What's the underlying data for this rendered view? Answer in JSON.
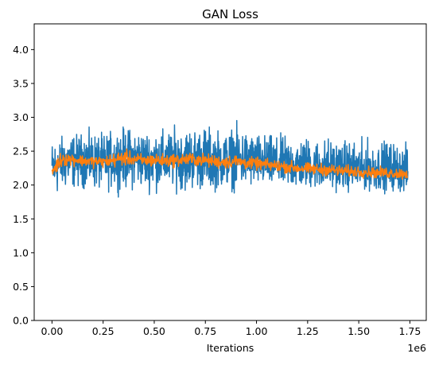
{
  "chart_data": {
    "type": "line",
    "title": "GAN Loss",
    "xlabel": "Iterations",
    "ylabel": "",
    "x_offset_label": "1e6",
    "x_ticks": [
      "0.00",
      "0.25",
      "0.50",
      "0.75",
      "1.00",
      "1.25",
      "1.50",
      "1.75"
    ],
    "y_ticks": [
      "0.0",
      "0.5",
      "1.0",
      "1.5",
      "2.0",
      "2.5",
      "3.0",
      "3.5",
      "4.0"
    ],
    "xlim": [
      -0.087,
      1.83
    ],
    "ylim": [
      0,
      4.38
    ],
    "grid": false,
    "series": [
      {
        "color": "#1f77b4",
        "x": [
          0.0,
          0.05,
          0.1,
          0.15,
          0.2,
          0.25,
          0.3,
          0.35,
          0.4,
          0.45,
          0.5,
          0.55,
          0.6,
          0.65,
          0.7,
          0.75,
          0.8,
          0.85,
          0.9,
          0.95,
          1.0,
          1.05,
          1.1,
          1.15,
          1.2,
          1.25,
          1.3,
          1.35,
          1.4,
          1.45,
          1.5,
          1.55,
          1.6,
          1.65,
          1.7,
          1.74
        ],
        "center": [
          2.25,
          2.35,
          2.38,
          2.38,
          2.37,
          2.35,
          2.38,
          2.4,
          2.4,
          2.38,
          2.38,
          2.37,
          2.38,
          2.4,
          2.39,
          2.38,
          2.36,
          2.37,
          2.38,
          2.37,
          2.35,
          2.33,
          2.32,
          2.3,
          2.28,
          2.3,
          2.27,
          2.26,
          2.25,
          2.24,
          2.22,
          2.22,
          2.2,
          2.2,
          2.18,
          2.17
        ],
        "low": [
          1.6,
          1.75,
          1.8,
          1.82,
          1.78,
          1.75,
          1.8,
          1.78,
          1.78,
          1.8,
          1.75,
          1.78,
          1.8,
          1.72,
          1.78,
          1.75,
          1.78,
          1.8,
          1.78,
          1.8,
          1.8,
          1.82,
          1.8,
          1.83,
          1.8,
          1.82,
          1.8,
          1.8,
          1.82,
          1.8,
          1.8,
          1.82,
          1.8,
          1.82,
          1.8,
          1.8
        ],
        "high": [
          2.8,
          2.85,
          2.88,
          2.9,
          2.92,
          2.88,
          2.95,
          3.0,
          2.98,
          2.95,
          2.98,
          2.95,
          3.0,
          3.0,
          3.02,
          3.05,
          2.98,
          2.95,
          3.05,
          2.95,
          2.9,
          2.88,
          2.85,
          2.88,
          2.85,
          2.85,
          2.82,
          2.85,
          2.82,
          2.8,
          2.8,
          2.82,
          2.8,
          2.82,
          2.78,
          2.72
        ]
      },
      {
        "color": "#ff7f0e",
        "x": [
          0.0,
          0.05,
          0.1,
          0.15,
          0.2,
          0.25,
          0.3,
          0.35,
          0.4,
          0.45,
          0.5,
          0.55,
          0.6,
          0.65,
          0.7,
          0.75,
          0.8,
          0.85,
          0.9,
          0.95,
          1.0,
          1.05,
          1.1,
          1.15,
          1.2,
          1.25,
          1.3,
          1.35,
          1.4,
          1.45,
          1.5,
          1.55,
          1.6,
          1.65,
          1.7,
          1.74
        ],
        "center": [
          2.2,
          2.4,
          2.38,
          2.36,
          2.35,
          2.34,
          2.36,
          2.4,
          2.38,
          2.36,
          2.37,
          2.36,
          2.37,
          2.38,
          2.38,
          2.37,
          2.35,
          2.34,
          2.35,
          2.33,
          2.32,
          2.3,
          2.28,
          2.27,
          2.25,
          2.24,
          2.23,
          2.23,
          2.21,
          2.2,
          2.2,
          2.19,
          2.18,
          2.18,
          2.17,
          2.17
        ],
        "low": [
          2.05,
          2.22,
          2.25,
          2.24,
          2.22,
          2.22,
          2.22,
          2.24,
          2.24,
          2.22,
          2.22,
          2.22,
          2.22,
          2.23,
          2.23,
          2.22,
          2.2,
          2.2,
          2.2,
          2.19,
          2.18,
          2.17,
          2.15,
          2.14,
          2.12,
          2.12,
          2.1,
          2.1,
          2.09,
          2.08,
          2.08,
          2.07,
          2.06,
          2.06,
          2.05,
          2.05
        ],
        "high": [
          2.35,
          2.55,
          2.5,
          2.48,
          2.47,
          2.47,
          2.52,
          2.58,
          2.52,
          2.5,
          2.52,
          2.5,
          2.5,
          2.52,
          2.52,
          2.5,
          2.48,
          2.48,
          2.5,
          2.45,
          2.44,
          2.42,
          2.42,
          2.4,
          2.38,
          2.36,
          2.36,
          2.35,
          2.34,
          2.33,
          2.32,
          2.31,
          2.3,
          2.3,
          2.29,
          2.29
        ]
      }
    ]
  }
}
